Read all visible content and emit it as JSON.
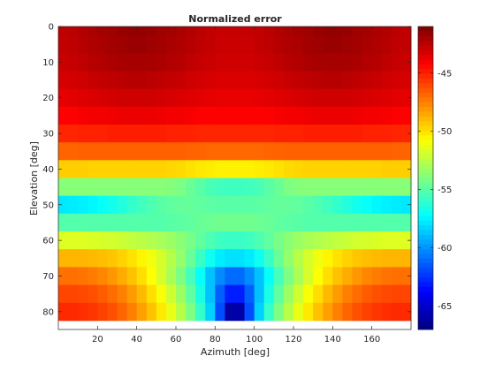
{
  "chart_data": {
    "type": "heatmap",
    "title": "Normalized error",
    "xlabel": "Azimuth [deg]",
    "ylabel": "Elevation [deg]",
    "x_range": [
      0,
      180
    ],
    "y_range": [
      0,
      85
    ],
    "x_step": 5,
    "y_step": 5,
    "x_ticks": [
      20,
      40,
      60,
      80,
      100,
      120,
      140,
      160
    ],
    "y_ticks": [
      0,
      10,
      20,
      30,
      40,
      50,
      60,
      70,
      80
    ],
    "colorbar": {
      "range": [
        -67,
        -41
      ],
      "ticks": [
        -45,
        -50,
        -55,
        -60,
        -65
      ]
    },
    "colormap": "jet",
    "grid": false,
    "x_centers": [
      2.5,
      7.5,
      12.5,
      17.5,
      22.5,
      27.5,
      32.5,
      37.5,
      42.5,
      47.5,
      52.5,
      57.5,
      62.5,
      67.5,
      72.5,
      77.5,
      82.5,
      87.5,
      92.5,
      97.5,
      102.5,
      107.5,
      112.5,
      117.5,
      122.5,
      127.5,
      132.5,
      137.5,
      142.5,
      147.5,
      152.5,
      157.5,
      162.5,
      167.5,
      172.5,
      177.5
    ],
    "y_centers": [
      0,
      5,
      10,
      15,
      20,
      25,
      30,
      35,
      40,
      45,
      50,
      55,
      60,
      65,
      70,
      75,
      80
    ],
    "values": [
      [
        -42.6,
        -42.5,
        -42.3,
        -42.1,
        -41.9,
        -41.8,
        -41.6,
        -41.5,
        -41.5,
        -41.6,
        -41.8,
        -41.9,
        -42.1,
        -42.3,
        -42.5,
        -42.7,
        -42.8,
        -42.8,
        -42.8,
        -42.8,
        -42.7,
        -42.5,
        -42.3,
        -42.1,
        -41.9,
        -41.8,
        -41.6,
        -41.5,
        -41.5,
        -41.6,
        -41.8,
        -41.9,
        -42.1,
        -42.3,
        -42.5,
        -42.6
      ],
      [
        -42.7,
        -42.6,
        -42.4,
        -42.2,
        -42.1,
        -41.9,
        -41.8,
        -41.7,
        -41.7,
        -41.8,
        -41.9,
        -42.1,
        -42.2,
        -42.4,
        -42.6,
        -42.7,
        -42.9,
        -42.9,
        -42.9,
        -42.9,
        -42.7,
        -42.6,
        -42.4,
        -42.2,
        -42.1,
        -41.9,
        -41.8,
        -41.7,
        -41.7,
        -41.8,
        -41.9,
        -42.1,
        -42.2,
        -42.4,
        -42.6,
        -42.7
      ],
      [
        -42.9,
        -42.8,
        -42.6,
        -42.4,
        -42.3,
        -42.1,
        -42.0,
        -42.0,
        -42.0,
        -42.0,
        -42.1,
        -42.3,
        -42.4,
        -42.6,
        -42.8,
        -42.9,
        -43.0,
        -43.0,
        -43.0,
        -43.0,
        -42.9,
        -42.8,
        -42.6,
        -42.4,
        -42.3,
        -42.1,
        -42.0,
        -42.0,
        -42.0,
        -42.0,
        -42.1,
        -42.3,
        -42.4,
        -42.6,
        -42.8,
        -42.9
      ],
      [
        -43.2,
        -43.1,
        -43.0,
        -42.8,
        -42.7,
        -42.6,
        -42.5,
        -42.4,
        -42.4,
        -42.5,
        -42.6,
        -42.7,
        -42.8,
        -43.0,
        -43.1,
        -43.2,
        -43.3,
        -43.3,
        -43.3,
        -43.3,
        -43.2,
        -43.1,
        -43.0,
        -42.8,
        -42.7,
        -42.6,
        -42.5,
        -42.4,
        -42.4,
        -42.5,
        -42.6,
        -42.7,
        -42.8,
        -43.0,
        -43.1,
        -43.2
      ],
      [
        -43.6,
        -43.5,
        -43.4,
        -43.3,
        -43.2,
        -43.1,
        -43.0,
        -43.0,
        -43.0,
        -43.0,
        -43.1,
        -43.2,
        -43.3,
        -43.4,
        -43.5,
        -43.6,
        -43.7,
        -43.7,
        -43.7,
        -43.7,
        -43.6,
        -43.5,
        -43.4,
        -43.3,
        -43.2,
        -43.1,
        -43.0,
        -43.0,
        -43.0,
        -43.0,
        -43.1,
        -43.2,
        -43.3,
        -43.4,
        -43.5,
        -43.6
      ],
      [
        -44.2,
        -44.2,
        -44.1,
        -44.0,
        -44.0,
        -43.9,
        -43.8,
        -43.8,
        -43.8,
        -43.8,
        -43.9,
        -44.0,
        -44.0,
        -44.1,
        -44.2,
        -44.2,
        -44.2,
        -44.2,
        -44.2,
        -44.2,
        -44.2,
        -44.2,
        -44.1,
        -44.0,
        -44.0,
        -43.9,
        -43.8,
        -43.8,
        -43.8,
        -43.8,
        -43.9,
        -44.0,
        -44.0,
        -44.1,
        -44.2,
        -44.2
      ],
      [
        -45.2,
        -45.2,
        -45.1,
        -45.1,
        -45.1,
        -45.0,
        -45.0,
        -45.0,
        -45.0,
        -45.0,
        -45.0,
        -45.1,
        -45.1,
        -45.1,
        -45.2,
        -45.2,
        -45.2,
        -45.2,
        -45.2,
        -45.2,
        -45.2,
        -45.2,
        -45.1,
        -45.1,
        -45.1,
        -45.0,
        -45.0,
        -45.0,
        -45.0,
        -45.0,
        -45.0,
        -45.1,
        -45.1,
        -45.1,
        -45.2,
        -45.2
      ],
      [
        -46.8,
        -46.8,
        -46.7,
        -46.7,
        -46.7,
        -46.7,
        -46.7,
        -46.7,
        -46.7,
        -46.7,
        -46.7,
        -46.7,
        -46.7,
        -46.8,
        -46.8,
        -46.9,
        -46.9,
        -46.9,
        -46.9,
        -46.9,
        -46.9,
        -46.8,
        -46.8,
        -46.7,
        -46.7,
        -46.7,
        -46.7,
        -46.7,
        -46.7,
        -46.7,
        -46.7,
        -46.7,
        -46.7,
        -46.7,
        -46.8,
        -46.8
      ],
      [
        -49.5,
        -49.5,
        -49.5,
        -49.6,
        -49.6,
        -49.6,
        -49.6,
        -49.6,
        -49.6,
        -49.6,
        -49.6,
        -49.7,
        -49.8,
        -50.0,
        -50.2,
        -50.3,
        -50.4,
        -50.4,
        -50.4,
        -50.4,
        -50.3,
        -50.2,
        -50.0,
        -49.8,
        -49.7,
        -49.6,
        -49.6,
        -49.6,
        -49.6,
        -49.6,
        -49.6,
        -49.6,
        -49.6,
        -49.5,
        -49.5,
        -49.5
      ],
      [
        -53.8,
        -53.8,
        -53.8,
        -53.8,
        -53.8,
        -53.8,
        -53.8,
        -53.8,
        -53.8,
        -53.8,
        -53.8,
        -53.9,
        -54.1,
        -54.6,
        -55.0,
        -55.4,
        -55.6,
        -55.7,
        -55.7,
        -55.6,
        -55.4,
        -55.0,
        -54.6,
        -54.1,
        -53.9,
        -53.8,
        -53.8,
        -53.8,
        -53.8,
        -53.8,
        -53.8,
        -53.8,
        -53.8,
        -53.8,
        -53.8,
        -53.8
      ],
      [
        -57.8,
        -57.7,
        -57.6,
        -57.4,
        -57.1,
        -56.8,
        -56.4,
        -56.0,
        -55.6,
        -55.3,
        -55.0,
        -54.8,
        -54.7,
        -54.7,
        -54.8,
        -54.9,
        -55.0,
        -55.0,
        -55.0,
        -55.0,
        -54.9,
        -54.8,
        -54.7,
        -54.7,
        -54.8,
        -55.0,
        -55.3,
        -55.6,
        -56.0,
        -56.4,
        -56.8,
        -57.1,
        -57.4,
        -57.6,
        -57.7,
        -57.8
      ],
      [
        -55.1,
        -55.1,
        -55.1,
        -55.1,
        -55.1,
        -55.1,
        -55.1,
        -55.1,
        -55.1,
        -55.1,
        -55.1,
        -55.0,
        -54.9,
        -54.8,
        -54.6,
        -54.5,
        -54.4,
        -54.4,
        -54.4,
        -54.4,
        -54.5,
        -54.6,
        -54.8,
        -54.9,
        -55.0,
        -55.1,
        -55.1,
        -55.1,
        -55.1,
        -55.1,
        -55.1,
        -55.1,
        -55.1,
        -55.1,
        -55.1,
        -55.1
      ],
      [
        -51.6,
        -51.6,
        -51.6,
        -51.7,
        -51.8,
        -51.9,
        -52.1,
        -52.3,
        -52.5,
        -52.7,
        -53.0,
        -53.3,
        -53.7,
        -54.2,
        -54.8,
        -55.3,
        -55.7,
        -55.8,
        -55.8,
        -55.7,
        -55.3,
        -54.8,
        -54.2,
        -53.7,
        -53.3,
        -53.0,
        -52.7,
        -52.5,
        -52.3,
        -52.1,
        -51.9,
        -51.8,
        -51.7,
        -51.6,
        -51.6,
        -51.6
      ],
      [
        -48.9,
        -48.9,
        -48.9,
        -49.0,
        -49.1,
        -49.3,
        -49.6,
        -50.0,
        -50.5,
        -51.1,
        -51.8,
        -52.6,
        -53.5,
        -54.6,
        -55.8,
        -56.9,
        -57.7,
        -58.0,
        -58.0,
        -57.7,
        -56.9,
        -55.8,
        -54.6,
        -53.5,
        -52.6,
        -51.8,
        -51.1,
        -50.5,
        -50.0,
        -49.6,
        -49.3,
        -49.1,
        -49.0,
        -48.9,
        -48.9,
        -48.9
      ],
      [
        -47.1,
        -47.1,
        -47.2,
        -47.4,
        -47.7,
        -48.1,
        -48.6,
        -49.2,
        -49.9,
        -50.8,
        -51.8,
        -52.9,
        -54.1,
        -55.5,
        -57.1,
        -58.8,
        -60.2,
        -61.0,
        -61.0,
        -60.2,
        -58.8,
        -57.1,
        -55.5,
        -54.1,
        -52.9,
        -51.8,
        -50.8,
        -49.9,
        -49.2,
        -48.6,
        -48.1,
        -47.7,
        -47.4,
        -47.2,
        -47.1,
        -47.1
      ],
      [
        -46.0,
        -46.0,
        -46.1,
        -46.3,
        -46.6,
        -47.0,
        -47.5,
        -48.2,
        -49.0,
        -49.9,
        -50.9,
        -52.0,
        -53.3,
        -54.8,
        -56.6,
        -58.8,
        -61.3,
        -63.0,
        -63.0,
        -61.3,
        -58.8,
        -56.6,
        -54.8,
        -53.3,
        -52.0,
        -50.9,
        -49.9,
        -49.0,
        -48.2,
        -47.5,
        -47.0,
        -46.6,
        -46.3,
        -46.1,
        -46.0,
        -46.0
      ],
      [
        -45.3,
        -45.3,
        -45.4,
        -45.6,
        -45.9,
        -46.3,
        -46.8,
        -47.5,
        -48.3,
        -49.2,
        -50.2,
        -51.3,
        -52.6,
        -54.1,
        -55.9,
        -58.4,
        -61.8,
        -66.0,
        -66.0,
        -61.8,
        -58.4,
        -55.9,
        -54.1,
        -52.6,
        -51.3,
        -50.2,
        -49.2,
        -48.3,
        -47.5,
        -46.8,
        -46.3,
        -45.9,
        -45.6,
        -45.4,
        -45.3,
        -45.3
      ]
    ]
  }
}
